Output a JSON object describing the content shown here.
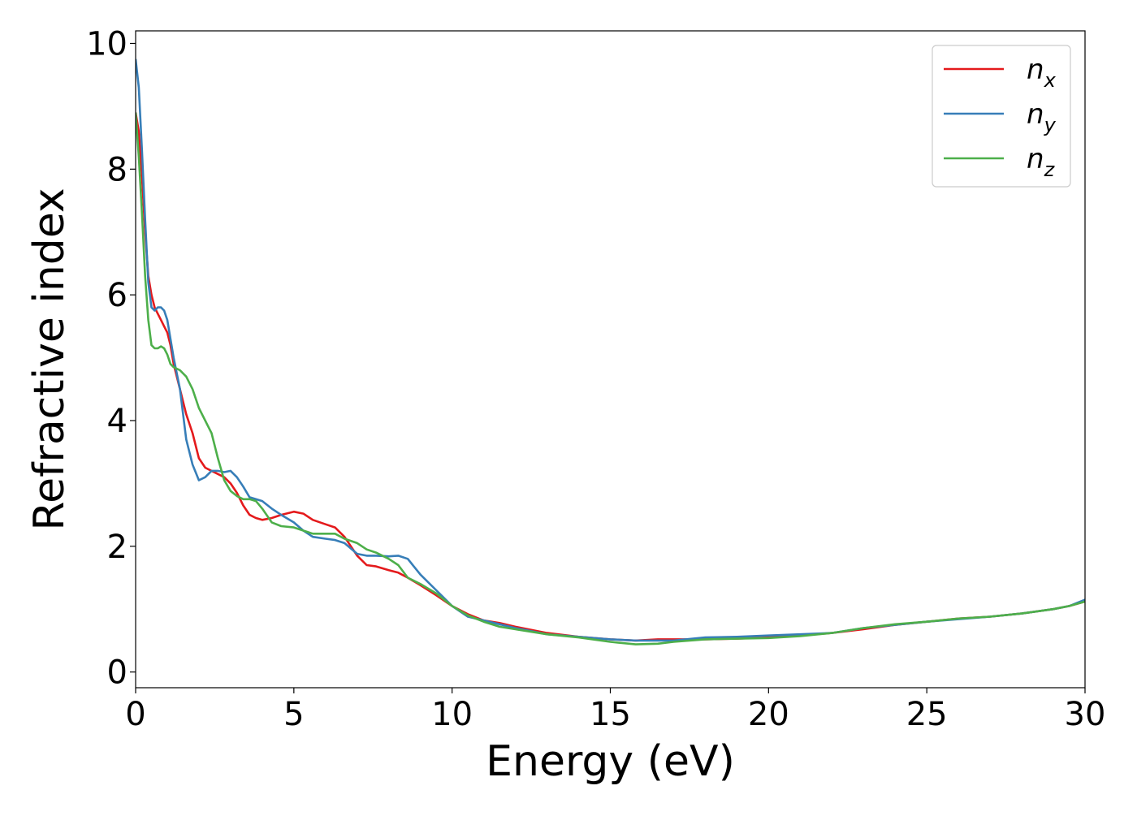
{
  "chart_data": {
    "type": "line",
    "title": "",
    "xlabel": "Energy (eV)",
    "ylabel": "Refractive index",
    "xlim": [
      0,
      30
    ],
    "ylim": [
      -0.25,
      10.2
    ],
    "xticks": [
      0,
      5,
      10,
      15,
      20,
      25,
      30
    ],
    "yticks": [
      0,
      2,
      4,
      6,
      8,
      10
    ],
    "grid": false,
    "legend_position": "top-right",
    "x": [
      0,
      0.1,
      0.2,
      0.3,
      0.4,
      0.5,
      0.6,
      0.7,
      0.8,
      0.9,
      1.0,
      1.1,
      1.2,
      1.4,
      1.6,
      1.8,
      2.0,
      2.2,
      2.4,
      2.6,
      2.8,
      3.0,
      3.2,
      3.4,
      3.6,
      3.8,
      4.0,
      4.3,
      4.6,
      5.0,
      5.3,
      5.6,
      6.0,
      6.3,
      6.6,
      7.0,
      7.3,
      7.6,
      8.0,
      8.3,
      8.6,
      9.0,
      9.5,
      10.0,
      10.5,
      11.0,
      11.5,
      12.0,
      13.0,
      14.0,
      15.0,
      15.8,
      16.5,
      17.0,
      18.0,
      19.0,
      20.0,
      21.0,
      22.0,
      23.0,
      24.0,
      25.0,
      26.0,
      27.0,
      28.0,
      29.0,
      29.5,
      30.0
    ],
    "series": [
      {
        "name": "n_x",
        "label_base": "n",
        "label_sub": "x",
        "color": "#e41a1c",
        "values": [
          8.9,
          8.6,
          7.9,
          7.0,
          6.3,
          6.0,
          5.8,
          5.7,
          5.6,
          5.5,
          5.4,
          5.2,
          4.9,
          4.5,
          4.1,
          3.8,
          3.4,
          3.25,
          3.2,
          3.15,
          3.1,
          3.0,
          2.85,
          2.65,
          2.5,
          2.45,
          2.42,
          2.45,
          2.5,
          2.55,
          2.52,
          2.42,
          2.35,
          2.3,
          2.15,
          1.85,
          1.7,
          1.68,
          1.62,
          1.58,
          1.5,
          1.38,
          1.22,
          1.05,
          0.92,
          0.82,
          0.78,
          0.72,
          0.62,
          0.56,
          0.52,
          0.5,
          0.52,
          0.52,
          0.52,
          0.53,
          0.55,
          0.58,
          0.62,
          0.68,
          0.75,
          0.8,
          0.85,
          0.88,
          0.93,
          1.0,
          1.05,
          1.12
        ]
      },
      {
        "name": "n_y",
        "label_base": "n",
        "label_sub": "y",
        "color": "#377eb8",
        "values": [
          9.75,
          9.3,
          8.3,
          7.2,
          6.2,
          5.8,
          5.75,
          5.8,
          5.8,
          5.75,
          5.6,
          5.3,
          5.0,
          4.5,
          3.7,
          3.3,
          3.05,
          3.1,
          3.2,
          3.2,
          3.18,
          3.2,
          3.1,
          2.95,
          2.78,
          2.75,
          2.72,
          2.6,
          2.5,
          2.38,
          2.25,
          2.15,
          2.12,
          2.1,
          2.05,
          1.88,
          1.85,
          1.85,
          1.84,
          1.85,
          1.8,
          1.55,
          1.3,
          1.05,
          0.88,
          0.82,
          0.76,
          0.7,
          0.6,
          0.56,
          0.52,
          0.5,
          0.5,
          0.5,
          0.55,
          0.56,
          0.58,
          0.6,
          0.62,
          0.7,
          0.75,
          0.8,
          0.84,
          0.88,
          0.93,
          1.0,
          1.05,
          1.15
        ]
      },
      {
        "name": "n_z",
        "label_base": "n",
        "label_sub": "z",
        "color": "#4daf4a",
        "values": [
          8.9,
          8.2,
          7.3,
          6.3,
          5.6,
          5.2,
          5.15,
          5.15,
          5.18,
          5.15,
          5.05,
          4.9,
          4.85,
          4.8,
          4.7,
          4.5,
          4.2,
          4.0,
          3.8,
          3.4,
          3.05,
          2.88,
          2.8,
          2.75,
          2.75,
          2.72,
          2.6,
          2.38,
          2.32,
          2.3,
          2.25,
          2.2,
          2.2,
          2.2,
          2.12,
          2.05,
          1.95,
          1.9,
          1.8,
          1.7,
          1.5,
          1.4,
          1.25,
          1.05,
          0.9,
          0.8,
          0.72,
          0.68,
          0.6,
          0.55,
          0.48,
          0.44,
          0.45,
          0.48,
          0.52,
          0.53,
          0.54,
          0.57,
          0.62,
          0.7,
          0.76,
          0.8,
          0.85,
          0.88,
          0.93,
          1.0,
          1.05,
          1.12
        ]
      }
    ]
  }
}
